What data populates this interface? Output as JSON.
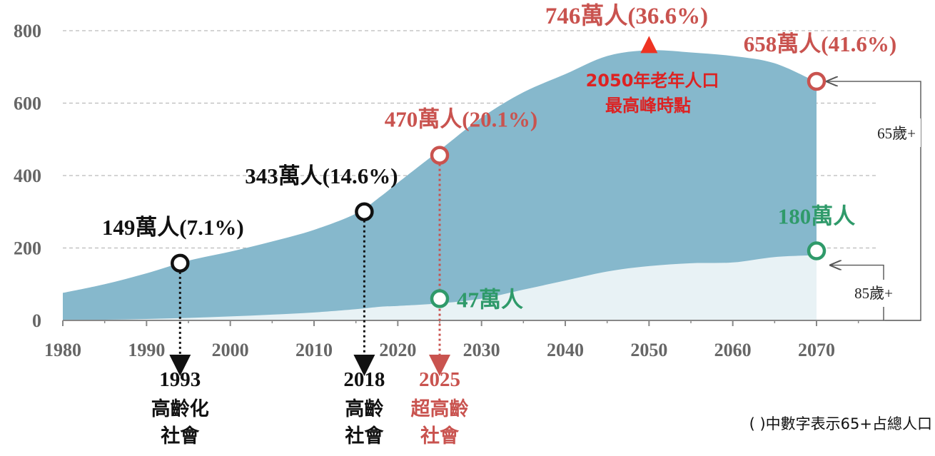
{
  "chart_data": {
    "type": "area",
    "x": [
      1980,
      1985,
      1990,
      1995,
      2000,
      2005,
      2010,
      2015,
      2018,
      2020,
      2025,
      2030,
      2035,
      2040,
      2045,
      2050,
      2055,
      2060,
      2065,
      2070
    ],
    "series": [
      {
        "name": "65歲+",
        "values": [
          76,
          100,
          130,
          165,
          190,
          218,
          250,
          295,
          343,
          380,
          470,
          560,
          630,
          680,
          730,
          746,
          740,
          730,
          710,
          658
        ]
      },
      {
        "name": "85歲+",
        "values": [
          1,
          2,
          4,
          7,
          11,
          16,
          22,
          31,
          38,
          40,
          47,
          60,
          85,
          110,
          135,
          150,
          158,
          160,
          175,
          180
        ]
      }
    ],
    "xlim": [
      1980,
      2070
    ],
    "ylim": [
      0,
      800
    ],
    "xticks": [
      "1980",
      "1990",
      "2000",
      "2010",
      "2020",
      "2030",
      "2040",
      "2050",
      "2060",
      "2070"
    ],
    "yticks": [
      "0",
      "200",
      "400",
      "600",
      "800"
    ],
    "grid": "horizontal dashed",
    "colors": {
      "series65": "#86b8cc",
      "series85": "#e8f2f5",
      "black": "#111111",
      "red": "#c9534f",
      "peak": "#ee3322",
      "peak_text": "#dd2222",
      "green": "#2f9a6a",
      "grid": "#bbbbbb"
    },
    "markers": [
      {
        "year": 1994,
        "value": 158,
        "label": "149萬人(7.1%)",
        "style": "black"
      },
      {
        "year": 2016,
        "value": 300,
        "label": "343萬人(14.6%)",
        "style": "black"
      },
      {
        "year": 2025,
        "value": 456,
        "label": "470萬人(20.1%)",
        "style": "red"
      },
      {
        "year": 2025,
        "value": 60,
        "label": "47萬人",
        "style": "green"
      },
      {
        "year": 2070,
        "value": 660,
        "label": "658萬人(41.6%)",
        "style": "red"
      },
      {
        "year": 2070,
        "value": 192,
        "label": "180萬人",
        "style": "green"
      }
    ],
    "peak": {
      "year": 2050,
      "value": 746,
      "label": "746萬人(36.6%)",
      "note_line1": "2050年老年人口",
      "note_line2": "最高峰時點"
    },
    "milestones": [
      {
        "year": 1994,
        "year_label": "1993",
        "line1": "高齡化",
        "line2": "社會",
        "style": "black"
      },
      {
        "year": 2016,
        "year_label": "2018",
        "line1": "高齡",
        "line2": "社會",
        "style": "black"
      },
      {
        "year": 2025,
        "year_label": "2025",
        "line1": "超高齡",
        "line2": "社會",
        "style": "red"
      }
    ],
    "bracket_labels": {
      "age65": "65歲+",
      "age85": "85歲+"
    },
    "footnote": "( )中數字表示65+占總人口"
  }
}
